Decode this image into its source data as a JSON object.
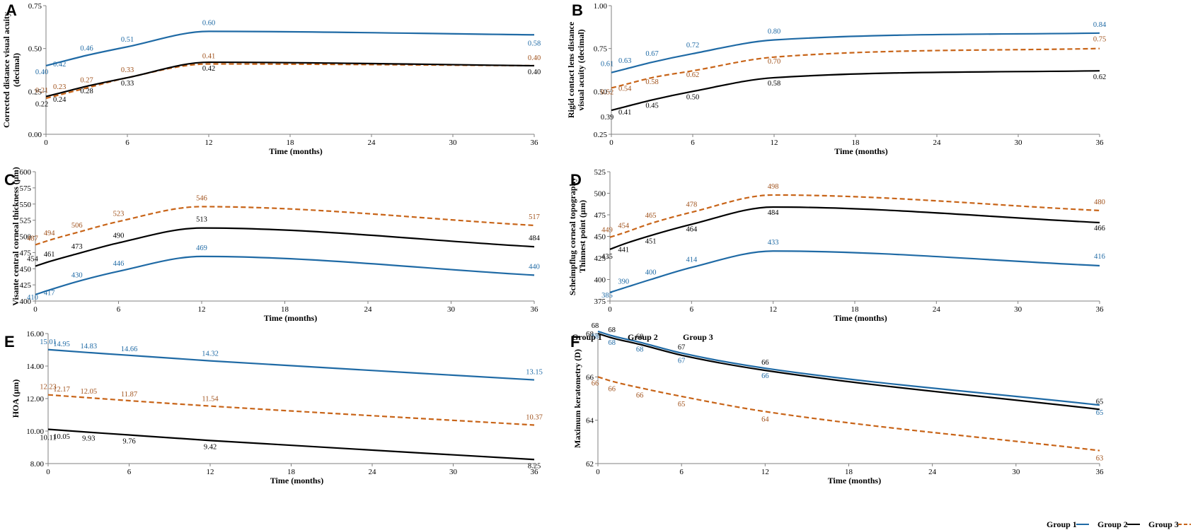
{
  "colors": {
    "group1": "#1f6aa5",
    "group2": "#000000",
    "group3": "#c86418",
    "group1_label": "#1f6aa5",
    "group2_label": "#000000",
    "group3_label": "#a0521c"
  },
  "legend": {
    "group1": "Group 1",
    "group2": "Group 2",
    "group3": "Group 3"
  },
  "chart_data": [
    {
      "panel": "A",
      "type": "line",
      "title": "",
      "xlabel": "Time (months)",
      "ylabel": "Corrected distance visual acuity (decimal)",
      "ylabel_lines": [
        "Corrected distance visual acuity",
        "(decimal)"
      ],
      "xlim": [
        0,
        36
      ],
      "ylim": [
        0,
        0.75
      ],
      "xticks": [
        0,
        6,
        12,
        18,
        24,
        30,
        36
      ],
      "yticks": [
        "0.00",
        "0.25",
        "0.50",
        "0.75"
      ],
      "series": [
        {
          "name": "Group 1",
          "style": "solid",
          "x": [
            0,
            1,
            3,
            6,
            12,
            36
          ],
          "y": [
            0.4,
            0.42,
            0.46,
            0.51,
            0.6,
            0.58
          ],
          "labels": [
            "0.40",
            "0.42",
            "0.46",
            "0.51",
            "0.60",
            "0.58"
          ]
        },
        {
          "name": "Group 2",
          "style": "solid",
          "x": [
            0,
            1,
            3,
            6,
            12,
            36
          ],
          "y": [
            0.22,
            0.24,
            0.28,
            0.33,
            0.42,
            0.4
          ],
          "labels": [
            "0.22",
            "0.24",
            "0.28",
            "0.33",
            "0.42",
            "0.40"
          ]
        },
        {
          "name": "Group 3",
          "style": "dashed",
          "x": [
            0,
            1,
            3,
            6,
            12,
            36
          ],
          "y": [
            0.21,
            0.23,
            0.27,
            0.33,
            0.41,
            0.4
          ],
          "labels": [
            "0.21",
            "0.23",
            "0.27",
            "0.33",
            "0.41",
            "0.40"
          ]
        }
      ]
    },
    {
      "panel": "B",
      "type": "line",
      "title": "",
      "xlabel": "Time (months)",
      "ylabel": "Rigid contact lens distance visual acuity (decimal)",
      "ylabel_lines": [
        "Rigid contact lens distance",
        "visual acuity (decimal)"
      ],
      "xlim": [
        0,
        36
      ],
      "ylim": [
        0.25,
        1.0
      ],
      "xticks": [
        0,
        6,
        12,
        18,
        24,
        30,
        36
      ],
      "yticks": [
        "0.25",
        "0.50",
        "0.75",
        "1.00"
      ],
      "series": [
        {
          "name": "Group 1",
          "style": "solid",
          "x": [
            0,
            1,
            3,
            6,
            12,
            36
          ],
          "y": [
            0.61,
            0.63,
            0.67,
            0.72,
            0.8,
            0.84
          ],
          "labels": [
            "0.61",
            "0.63",
            "0.67",
            "0.72",
            "0.80",
            "0.84"
          ]
        },
        {
          "name": "Group 2",
          "style": "solid",
          "x": [
            0,
            1,
            3,
            6,
            12,
            36
          ],
          "y": [
            0.39,
            0.41,
            0.45,
            0.5,
            0.58,
            0.62
          ],
          "labels": [
            "0.39",
            "0.41",
            "0.45",
            "0.50",
            "0.58",
            "0.62"
          ]
        },
        {
          "name": "Group 3",
          "style": "dashed",
          "x": [
            0,
            1,
            3,
            6,
            12,
            36
          ],
          "y": [
            0.52,
            0.54,
            0.58,
            0.62,
            0.7,
            0.75
          ],
          "labels": [
            "0.52",
            "0.54",
            "0.58",
            "0.62",
            "0.70",
            "0.75"
          ]
        }
      ]
    },
    {
      "panel": "C",
      "type": "line",
      "title": "",
      "xlabel": "Time (months)",
      "ylabel": "Visante central corneal thickness (µm)",
      "ylabel_lines": [
        "Visante central corneal thickness (µm)"
      ],
      "xlim": [
        0,
        36
      ],
      "ylim": [
        400,
        600
      ],
      "xticks": [
        0,
        6,
        12,
        18,
        24,
        30,
        36
      ],
      "yticks": [
        "400",
        "425",
        "450",
        "475",
        "500",
        "525",
        "550",
        "575",
        "600"
      ],
      "series": [
        {
          "name": "Group 1",
          "style": "solid",
          "x": [
            0,
            1,
            3,
            6,
            12,
            36
          ],
          "y": [
            410,
            417,
            430,
            446,
            469,
            440
          ],
          "labels": [
            "410",
            "417",
            "430",
            "446",
            "469",
            "440"
          ]
        },
        {
          "name": "Group 2",
          "style": "solid",
          "x": [
            0,
            1,
            3,
            6,
            12,
            36
          ],
          "y": [
            454,
            461,
            473,
            490,
            513,
            484
          ],
          "labels": [
            "454",
            "461",
            "473",
            "490",
            "513",
            "484"
          ]
        },
        {
          "name": "Group 3",
          "style": "dashed",
          "x": [
            0,
            1,
            3,
            6,
            12,
            36
          ],
          "y": [
            487,
            494,
            506,
            523,
            546,
            517
          ],
          "labels": [
            "487",
            "494",
            "506",
            "523",
            "546",
            "517"
          ]
        }
      ]
    },
    {
      "panel": "D",
      "type": "line",
      "title": "",
      "xlabel": "Time (months)",
      "ylabel": "Scheimpflug corneal topography Thinnest point (µm)",
      "ylabel_lines": [
        "Scheimpflug corneal topography",
        "Thinnest point (µm)"
      ],
      "xlim": [
        0,
        36
      ],
      "ylim": [
        375,
        525
      ],
      "xticks": [
        0,
        6,
        12,
        18,
        24,
        30,
        36
      ],
      "yticks": [
        "375",
        "400",
        "425",
        "450",
        "475",
        "500",
        "525"
      ],
      "series": [
        {
          "name": "Group 1",
          "style": "solid",
          "x": [
            0,
            1,
            3,
            6,
            12,
            36
          ],
          "y": [
            385,
            390,
            400,
            414,
            433,
            416
          ],
          "labels": [
            "385",
            "390",
            "400",
            "414",
            "433",
            "416"
          ]
        },
        {
          "name": "Group 2",
          "style": "solid",
          "x": [
            0,
            1,
            3,
            6,
            12,
            36
          ],
          "y": [
            435,
            441,
            451,
            464,
            484,
            466
          ],
          "labels": [
            "435",
            "441",
            "451",
            "464",
            "484",
            "466"
          ]
        },
        {
          "name": "Group 3",
          "style": "dashed",
          "x": [
            0,
            1,
            3,
            6,
            12,
            36
          ],
          "y": [
            449,
            454,
            465,
            478,
            498,
            480
          ],
          "labels": [
            "449",
            "454",
            "465",
            "478",
            "498",
            "480"
          ]
        }
      ]
    },
    {
      "panel": "E",
      "type": "line",
      "title": "",
      "xlabel": "Time (months)",
      "ylabel": "HOA (µm)",
      "ylabel_lines": [
        "HOA (µm)"
      ],
      "xlim": [
        0,
        36
      ],
      "ylim": [
        8,
        16
      ],
      "xticks": [
        0,
        6,
        12,
        18,
        24,
        30,
        36
      ],
      "yticks": [
        "8.00",
        "10.00",
        "12.00",
        "14.00",
        "16.00"
      ],
      "series": [
        {
          "name": "Group 1",
          "style": "solid",
          "x": [
            0,
            1,
            3,
            6,
            12,
            36
          ],
          "y": [
            15.01,
            14.95,
            14.83,
            14.66,
            14.32,
            13.15
          ],
          "labels": [
            "15.01",
            "14.95",
            "14.83",
            "14.66",
            "14.32",
            "13.15"
          ]
        },
        {
          "name": "Group 2",
          "style": "solid",
          "x": [
            0,
            1,
            3,
            6,
            12,
            36
          ],
          "y": [
            10.11,
            10.05,
            9.93,
            9.76,
            9.42,
            8.25
          ],
          "labels": [
            "10.11",
            "10.05",
            "9.93",
            "9.76",
            "9.42",
            "8.25"
          ]
        },
        {
          "name": "Group 3",
          "style": "dashed",
          "x": [
            0,
            1,
            3,
            6,
            12,
            36
          ],
          "y": [
            12.23,
            12.17,
            12.05,
            11.87,
            11.54,
            10.37
          ],
          "labels": [
            "12.23",
            "12.17",
            "12.05",
            "11.87",
            "11.54",
            "10.37"
          ]
        }
      ]
    },
    {
      "panel": "F",
      "type": "line",
      "title": "",
      "xlabel": "Time (months)",
      "ylabel": "Maximum keratometry (D)",
      "ylabel_lines": [
        "Maximum keratometry (D)"
      ],
      "xlim": [
        0,
        36
      ],
      "ylim": [
        62,
        68
      ],
      "xticks": [
        0,
        6,
        12,
        18,
        24,
        30,
        36
      ],
      "yticks": [
        "62",
        "64",
        "66",
        "68"
      ],
      "legend_top": [
        "Group 1",
        "Group 2",
        "Group 3"
      ],
      "series": [
        {
          "name": "Group 1",
          "style": "solid",
          "x": [
            0,
            1,
            3,
            6,
            12,
            36
          ],
          "y": [
            68.1,
            67.9,
            67.6,
            67.1,
            66.4,
            64.7
          ],
          "labels": [
            "68",
            "68",
            "68",
            "67",
            "66",
            "65"
          ]
        },
        {
          "name": "Group 2",
          "style": "solid",
          "x": [
            0,
            1,
            3,
            6,
            12,
            36
          ],
          "y": [
            68.0,
            67.8,
            67.5,
            67.0,
            66.3,
            64.5
          ],
          "labels": [
            "68",
            "68",
            "68",
            "67",
            "66",
            "65"
          ]
        },
        {
          "name": "Group 3",
          "style": "dashed",
          "x": [
            0,
            1,
            3,
            6,
            12,
            36
          ],
          "y": [
            66.0,
            65.8,
            65.5,
            65.1,
            64.4,
            62.6
          ],
          "labels": [
            "66",
            "66",
            "66",
            "65",
            "64",
            "63"
          ]
        }
      ]
    }
  ]
}
